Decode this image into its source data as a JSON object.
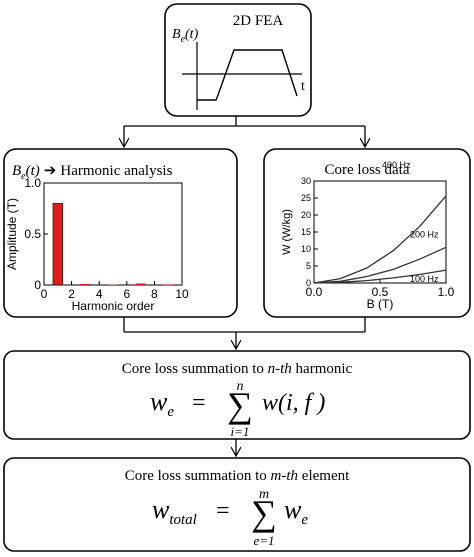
{
  "fea_box": {
    "title": "2D FEA",
    "signal_label": {
      "base": "B",
      "sub": "e",
      "suffix": "(t)"
    },
    "time_label": "t"
  },
  "harmonic_box": {
    "signal_label": {
      "base": "B",
      "sub": "e",
      "suffix": "(t)"
    },
    "arrow": "➔",
    "title": "Harmonic analysis",
    "chart_data": {
      "type": "bar",
      "xlabel": "Harmonic order",
      "ylabel": "Amplitude (T)",
      "xlim": [
        0,
        10
      ],
      "ylim": [
        0,
        1.0
      ],
      "xticks": [
        "0",
        "2",
        "4",
        "6",
        "8",
        "10"
      ],
      "yticks": [
        "0",
        "0.5",
        "1.0"
      ],
      "categories": [
        1,
        2,
        3,
        4,
        5,
        6,
        7,
        8,
        9
      ],
      "values": [
        0.8,
        0.0,
        0.01,
        0.0,
        0.005,
        0.0,
        0.015,
        0.0,
        0.005
      ],
      "bar_color": "#e31b1b"
    }
  },
  "coreloss_box": {
    "title": "Core loss data",
    "chart_data": {
      "type": "line",
      "xlabel": "B (T)",
      "ylabel": "W (W/kg)",
      "xlim": [
        0,
        1.0
      ],
      "ylim": [
        0,
        30
      ],
      "xticks": [
        "0.0",
        "0.5",
        "1.0"
      ],
      "yticks": [
        "0",
        "5",
        "10",
        "15",
        "20",
        "25",
        "30"
      ],
      "series": [
        {
          "name": "400 Hz",
          "x": [
            0,
            0.2,
            0.4,
            0.6,
            0.8,
            1.0
          ],
          "y": [
            0,
            1.3,
            4.4,
            9.5,
            16.6,
            25.6
          ]
        },
        {
          "name": "200 Hz",
          "x": [
            0,
            0.2,
            0.4,
            0.6,
            0.8,
            1.0
          ],
          "y": [
            0,
            0.5,
            1.9,
            4.0,
            7.0,
            10.5
          ]
        },
        {
          "name": "100 Hz",
          "x": [
            0,
            0.2,
            0.4,
            0.6,
            0.8,
            1.0
          ],
          "y": [
            0,
            0.2,
            0.7,
            1.5,
            2.5,
            3.8
          ]
        }
      ]
    }
  },
  "summation_n": {
    "caption_prefix": "Core loss summation to ",
    "caption_italic": "n-th",
    "caption_suffix": " harmonic",
    "lhs": "w",
    "lhs_sub": "e",
    "equals": "=",
    "sigma": "∑",
    "upper": "n",
    "lower": "i=1",
    "term": "w(i, f )"
  },
  "summation_m": {
    "caption_prefix": "Core loss summation to ",
    "caption_italic": "m-th",
    "caption_suffix": " element",
    "lhs": "w",
    "lhs_sub": "total",
    "equals": "=",
    "sigma": "∑",
    "upper": "m",
    "lower": "e=1",
    "term": "w",
    "term_sub": "e"
  },
  "colors": {
    "stroke": "#000000",
    "bar": "#e31b1b",
    "curve": "#333333"
  }
}
